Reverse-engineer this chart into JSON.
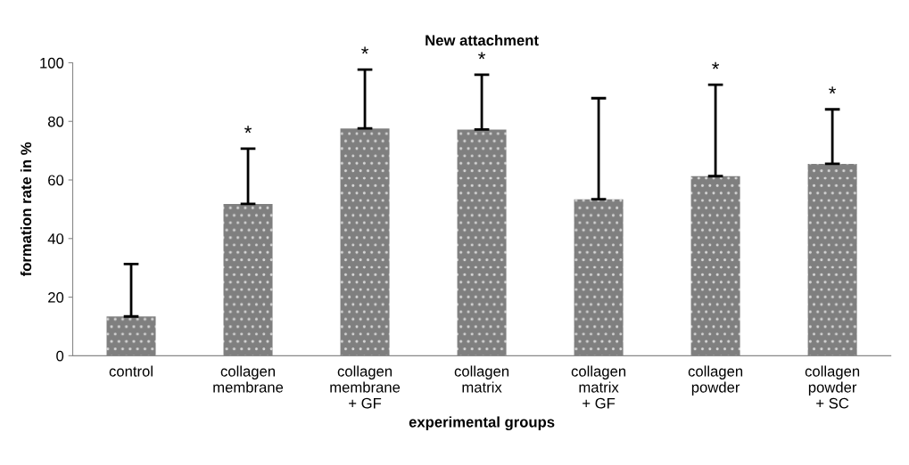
{
  "chart_data": {
    "type": "bar",
    "title": "New attachment",
    "xlabel": "experimental groups",
    "ylabel": "formation rate in %",
    "categories": [
      "control",
      "collagen\nmembrane",
      "collagen\nmembrane\n+ GF",
      "collagen\nmatrix",
      "collagen\nmatrix\n+ GF",
      "collagen\npowder",
      "collagen\npowder\n+ SC"
    ],
    "values": [
      13.4,
      51.8,
      77.6,
      77.2,
      53.4,
      61.3,
      65.5
    ],
    "errors": [
      [
        13.4,
        31.3
      ],
      [
        51.8,
        70.7
      ],
      [
        77.6,
        97.7
      ],
      [
        77.2,
        95.9
      ],
      [
        53.4,
        87.9
      ],
      [
        61.3,
        92.5
      ],
      [
        65.5,
        84.1
      ]
    ],
    "color": "#7f7f7f",
    "ylim": [
      0,
      100
    ],
    "yticks": [
      0,
      20,
      40,
      60,
      80,
      100
    ],
    "grid": false,
    "legend": false,
    "annotations": [
      {
        "text": "*",
        "x": "collagen\nmembrane",
        "y": 70.7
      },
      {
        "text": "*",
        "x": "collagen\nmembrane\n+ GF",
        "y": 97.7
      },
      {
        "text": "*",
        "x": "collagen\nmatrix",
        "y": 95.9
      },
      {
        "text": "*",
        "x": "collagen\npowder",
        "y": 92.5
      },
      {
        "text": "*",
        "x": "collagen\npowder\n+ SC",
        "y": 84.1
      }
    ]
  }
}
